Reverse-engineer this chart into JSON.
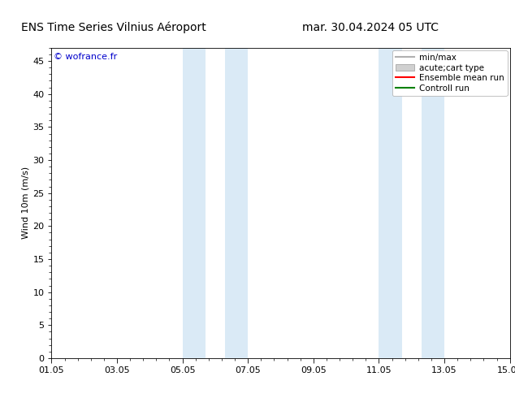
{
  "title_left": "ENS Time Series Vilnius Aéroport",
  "title_right": "mar. 30.04.2024 05 UTC",
  "ylabel": "Wind 10m (m/s)",
  "watermark": "© wofrance.fr",
  "xmin": 0,
  "xmax": 14,
  "ymin": 0,
  "ymax": 47,
  "yticks": [
    0,
    5,
    10,
    15,
    20,
    25,
    30,
    35,
    40,
    45
  ],
  "xtick_labels": [
    "01.05",
    "03.05",
    "05.05",
    "07.05",
    "09.05",
    "11.05",
    "13.05",
    "15.05"
  ],
  "xtick_positions": [
    0,
    2,
    4,
    6,
    8,
    10,
    12,
    14
  ],
  "shaded_regions": [
    {
      "xstart": 4.0,
      "xend": 4.7,
      "color": "#daeaf6"
    },
    {
      "xstart": 5.3,
      "xend": 6.0,
      "color": "#daeaf6"
    },
    {
      "xstart": 10.0,
      "xend": 10.7,
      "color": "#daeaf6"
    },
    {
      "xstart": 11.3,
      "xend": 12.0,
      "color": "#daeaf6"
    }
  ],
  "bg_color": "#ffffff",
  "plot_bg_color": "#ffffff",
  "legend_items": [
    {
      "label": "min/max",
      "color": "#b0b0b0",
      "lw": 1.5,
      "style": "line"
    },
    {
      "label": "acute;cart type",
      "color": "#d0d0d0",
      "lw": 8,
      "style": "band"
    },
    {
      "label": "Ensemble mean run",
      "color": "#ff0000",
      "lw": 1.5,
      "style": "line"
    },
    {
      "label": "Controll run",
      "color": "#008000",
      "lw": 1.5,
      "style": "line"
    }
  ],
  "minor_xtick_count": 4,
  "tick_color": "#000000",
  "title_fontsize": 10,
  "axis_label_fontsize": 8,
  "tick_fontsize": 8,
  "watermark_fontsize": 8,
  "legend_fontsize": 7.5
}
